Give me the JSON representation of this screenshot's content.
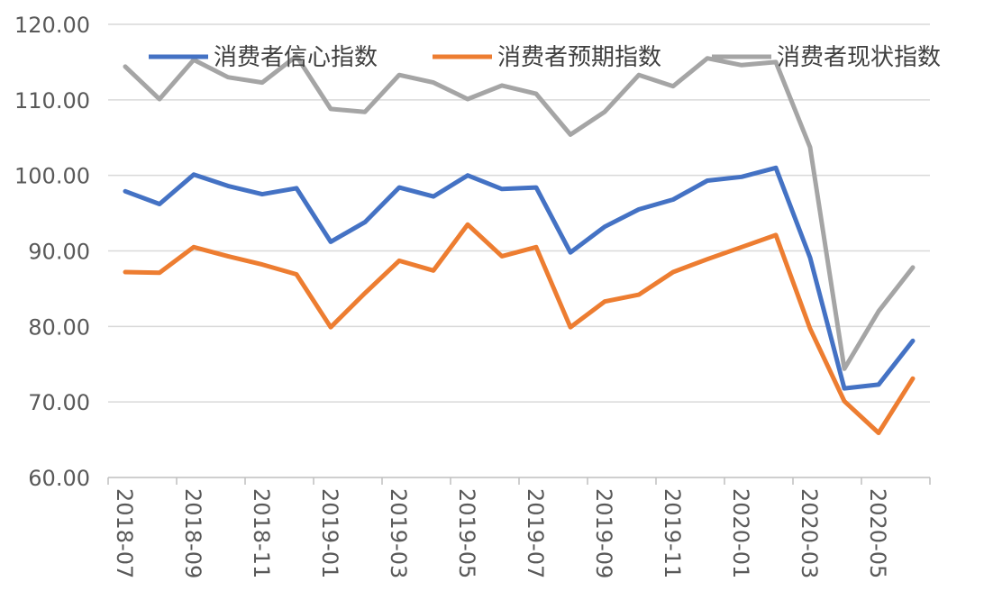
{
  "chart_data": {
    "type": "line",
    "title": "",
    "xlabel": "",
    "ylabel": "",
    "ylim": [
      60,
      120
    ],
    "yticks": [
      "60.00",
      "70.00",
      "80.00",
      "90.00",
      "100.00",
      "110.00",
      "120.00"
    ],
    "grid": true,
    "legend_position": "top",
    "x": [
      "2018-07",
      "2018-08",
      "2018-09",
      "2018-10",
      "2018-11",
      "2018-12",
      "2019-01",
      "2019-02",
      "2019-03",
      "2019-04",
      "2019-05",
      "2019-06",
      "2019-07",
      "2019-08",
      "2019-09",
      "2019-10",
      "2019-11",
      "2019-12",
      "2020-01",
      "2020-02",
      "2020-03",
      "2020-04",
      "2020-05",
      "2020-06"
    ],
    "xtick_labels": [
      "2018-07",
      "2018-09",
      "2018-11",
      "2019-01",
      "2019-03",
      "2019-05",
      "2019-07",
      "2019-09",
      "2019-11",
      "2020-01",
      "2020-03",
      "2020-05"
    ],
    "series": [
      {
        "name": "消费者信心指数",
        "color": "#4472C4",
        "values": [
          97.9,
          96.2,
          100.1,
          98.6,
          97.5,
          98.3,
          91.2,
          93.8,
          98.4,
          97.2,
          100.0,
          98.2,
          98.4,
          89.8,
          93.2,
          95.5,
          96.8,
          99.3,
          99.8,
          101.0,
          89.1,
          71.8,
          72.3,
          78.1
        ]
      },
      {
        "name": "消费者预期指数",
        "color": "#ED7D31",
        "values": [
          87.2,
          87.1,
          90.5,
          89.3,
          88.2,
          86.9,
          79.9,
          84.4,
          88.7,
          87.4,
          93.5,
          89.3,
          90.5,
          79.9,
          83.3,
          84.2,
          87.2,
          88.9,
          90.5,
          92.1,
          79.7,
          70.1,
          65.9,
          73.1
        ]
      },
      {
        "name": "消费者现状指数",
        "color": "#A5A5A5",
        "values": [
          114.4,
          110.1,
          115.3,
          113.0,
          112.3,
          115.8,
          108.8,
          108.4,
          113.3,
          112.3,
          110.1,
          111.9,
          110.8,
          105.4,
          108.4,
          113.3,
          111.8,
          115.5,
          114.6,
          115.0,
          103.7,
          74.4,
          82.0,
          87.8
        ]
      }
    ]
  }
}
